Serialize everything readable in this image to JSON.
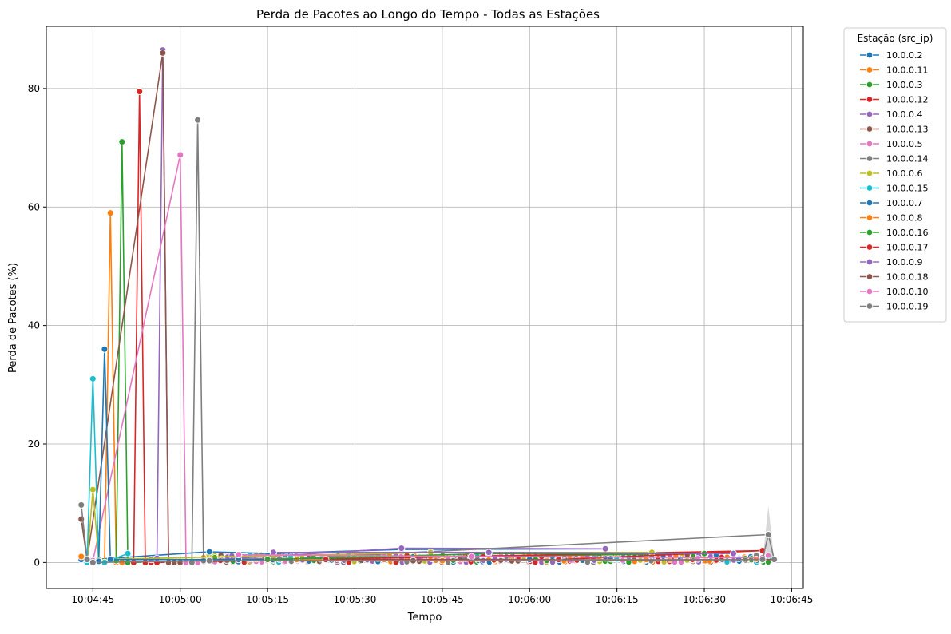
{
  "chart_data": {
    "type": "line",
    "title": "Perda de Pacotes ao Longo do Tempo - Todas as Estações",
    "xlabel": "Tempo",
    "ylabel": "Perda de Pacotes (%)",
    "xlim": [
      "10:04:37",
      "10:06:47"
    ],
    "ylim": [
      -4.4,
      90.5
    ],
    "x_ticks": [
      "10:04:45",
      "10:05:00",
      "10:05:15",
      "10:05:30",
      "10:05:45",
      "10:06:00",
      "10:06:15",
      "10:06:30",
      "10:06:45"
    ],
    "y_ticks": [
      0,
      20,
      40,
      60,
      80
    ],
    "grid": true,
    "legend": {
      "title": "Estação (src_ip)",
      "placement": "outside-right"
    },
    "series": [
      {
        "name": "10.0.0.2",
        "color": "#1f77b4",
        "x": [
          "10:04:43",
          "10:04:45",
          "10:05:05",
          "10:05:16",
          "10:05:38",
          "10:06:13"
        ],
        "y": [
          0.5,
          0.5,
          1.8,
          1.5,
          2.2,
          2.3
        ]
      },
      {
        "name": "10.0.0.11",
        "color": "#ff7f0e",
        "x": [
          "10:04:43",
          "10:04:44",
          "10:04:45",
          "10:04:47",
          "10:04:48",
          "10:04:49",
          "10:04:50"
        ],
        "y": [
          1.0,
          0.5,
          0.3,
          0.0,
          59.0,
          0.0,
          0.0
        ]
      },
      {
        "name": "10.0.0.3",
        "color": "#2ca02c",
        "x": [
          "10:04:49",
          "10:04:50",
          "10:04:51",
          "10:04:52",
          "10:05:10",
          "10:06:30"
        ],
        "y": [
          0.3,
          71.0,
          0.0,
          0.0,
          0.5,
          1.5
        ]
      },
      {
        "name": "10.0.0.12",
        "color": "#d62728",
        "x": [
          "10:04:52",
          "10:04:53",
          "10:04:54",
          "10:04:55",
          "10:04:56",
          "10:06:40"
        ],
        "y": [
          0.0,
          79.5,
          0.0,
          0.0,
          0.0,
          2.0
        ]
      },
      {
        "name": "10.0.0.4",
        "color": "#9467bd",
        "x": [
          "10:04:55",
          "10:04:56",
          "10:04:57",
          "10:04:58",
          "10:05:38",
          "10:06:13"
        ],
        "y": [
          0.5,
          0.7,
          86.5,
          0.0,
          2.4,
          2.3
        ]
      },
      {
        "name": "10.0.0.13",
        "color": "#8c564b",
        "x": [
          "10:04:43",
          "10:04:44",
          "10:04:57",
          "10:04:58",
          "10:04:59",
          "10:05:00"
        ],
        "y": [
          7.3,
          0.5,
          86.0,
          0.0,
          0.0,
          0.0
        ]
      },
      {
        "name": "10.0.0.5",
        "color": "#e377c2",
        "x": [
          "10:04:44",
          "10:04:45",
          "10:05:00",
          "10:05:01",
          "10:05:02",
          "10:05:03"
        ],
        "y": [
          0.0,
          0.3,
          68.8,
          0.0,
          0.0,
          0.0
        ]
      },
      {
        "name": "10.0.0.14",
        "color": "#7f7f7f",
        "x": [
          "10:05:02",
          "10:05:03",
          "10:05:04",
          "10:05:05",
          "10:05:20",
          "10:06:41"
        ],
        "y": [
          0.0,
          74.7,
          0.3,
          0.5,
          0.7,
          4.7
        ]
      },
      {
        "name": "10.0.0.6",
        "color": "#bcbd22",
        "x": [
          "10:04:44",
          "10:04:45",
          "10:04:46",
          "10:05:43",
          "10:06:21"
        ],
        "y": [
          0.0,
          12.3,
          0.5,
          1.7,
          1.7
        ]
      },
      {
        "name": "10.0.0.15",
        "color": "#17becf",
        "x": [
          "10:04:44",
          "10:04:45",
          "10:04:46",
          "10:04:47",
          "10:04:51"
        ],
        "y": [
          0.0,
          31.0,
          0.0,
          0.0,
          1.5
        ]
      },
      {
        "name": "10.0.0.7",
        "color": "#1f77b4",
        "x": [
          "10:04:46",
          "10:04:47",
          "10:04:48",
          "10:05:10",
          "10:06:00"
        ],
        "y": [
          0.2,
          36.0,
          0.5,
          0.5,
          0.5
        ]
      },
      {
        "name": "10.0.0.8",
        "color": "#ff7f0e",
        "x": [
          "10:05:20",
          "10:05:45",
          "10:06:20"
        ],
        "y": [
          0.5,
          0.3,
          0.5
        ]
      },
      {
        "name": "10.0.0.16",
        "color": "#2ca02c",
        "x": [
          "10:05:15",
          "10:05:53",
          "10:06:30"
        ],
        "y": [
          0.5,
          1.5,
          1.5
        ]
      },
      {
        "name": "10.0.0.17",
        "color": "#d62728",
        "x": [
          "10:05:25",
          "10:06:05",
          "10:06:40"
        ],
        "y": [
          0.5,
          0.5,
          2.0
        ]
      },
      {
        "name": "10.0.0.9",
        "color": "#9467bd",
        "x": [
          "10:05:16",
          "10:05:53",
          "10:06:35"
        ],
        "y": [
          1.7,
          1.7,
          1.5
        ]
      },
      {
        "name": "10.0.0.18",
        "color": "#8c564b",
        "x": [
          "10:05:05",
          "10:05:40",
          "10:06:42"
        ],
        "y": [
          0.3,
          0.3,
          0.5
        ]
      },
      {
        "name": "10.0.0.10",
        "color": "#e377c2",
        "x": [
          "10:05:10",
          "10:05:50",
          "10:06:40"
        ],
        "y": [
          1.3,
          1.0,
          0.8
        ]
      },
      {
        "name": "10.0.0.19",
        "color": "#7f7f7f",
        "x": [
          "10:04:43",
          "10:04:44",
          "10:04:45",
          "10:05:05",
          "10:06:40",
          "10:06:41",
          "10:06:42"
        ],
        "y": [
          9.7,
          0.5,
          0.0,
          0.3,
          0.5,
          4.7,
          0.5
        ]
      }
    ],
    "background_points": {
      "x_range": [
        "10:05:04",
        "10:06:41"
      ],
      "y_low": 0.0,
      "y_high": 1.3
    }
  }
}
